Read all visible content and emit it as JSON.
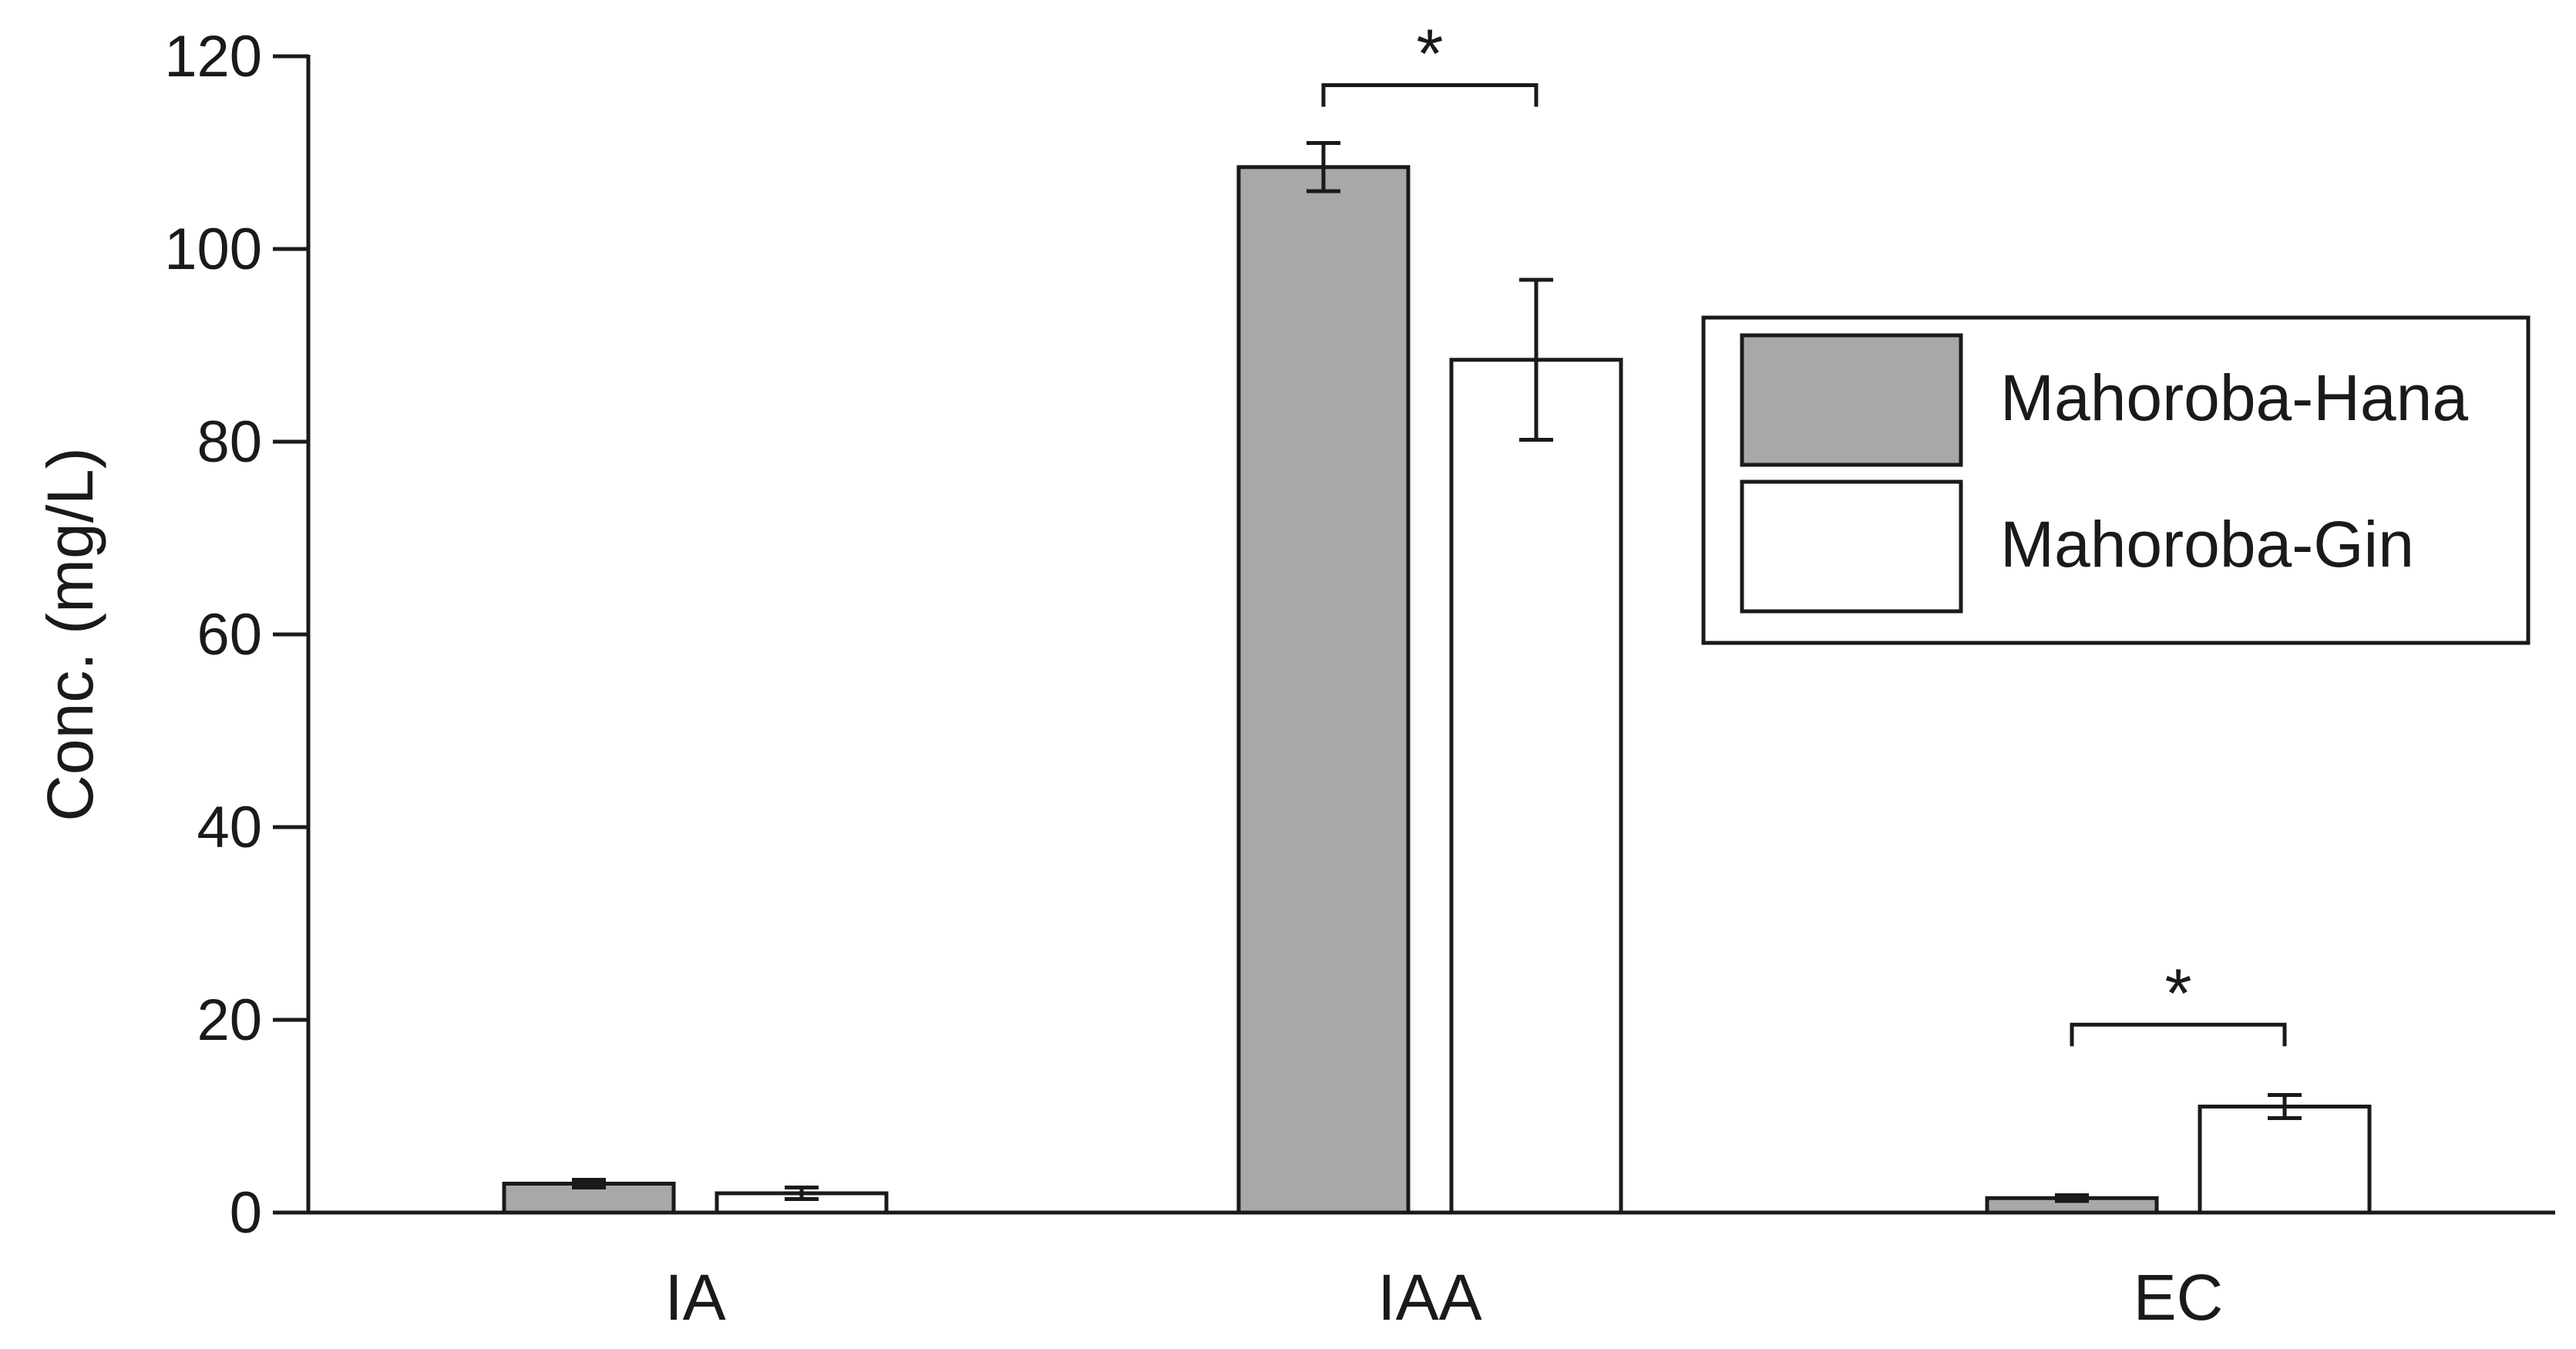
{
  "chart_data": {
    "type": "bar",
    "title": "",
    "xlabel": "",
    "ylabel": "Conc. (mg/L)",
    "ylim": [
      0,
      120
    ],
    "yticks": [
      0,
      20,
      40,
      60,
      80,
      100,
      120
    ],
    "ytick_labels": [
      "0",
      "20",
      "40",
      "60",
      "80",
      "100",
      "120"
    ],
    "grid": false,
    "legend_position": "right",
    "categories": [
      "IA",
      "IAA",
      "EC"
    ],
    "series": [
      {
        "name": "Mahoroba-Hana",
        "color": "#a8a8a8",
        "values": [
          3.0,
          108.5,
          1.5
        ],
        "errors": [
          0.4,
          2.5,
          0.3
        ]
      },
      {
        "name": "Mahoroba-Gin",
        "color": "#ffffff",
        "values": [
          2.0,
          88.5,
          11.0
        ],
        "errors": [
          0.6,
          8.3,
          1.2
        ]
      }
    ],
    "annotations": [
      {
        "category": "IAA",
        "text": "*",
        "y": 117
      },
      {
        "category": "EC",
        "text": "*",
        "y": 19.5
      }
    ]
  }
}
